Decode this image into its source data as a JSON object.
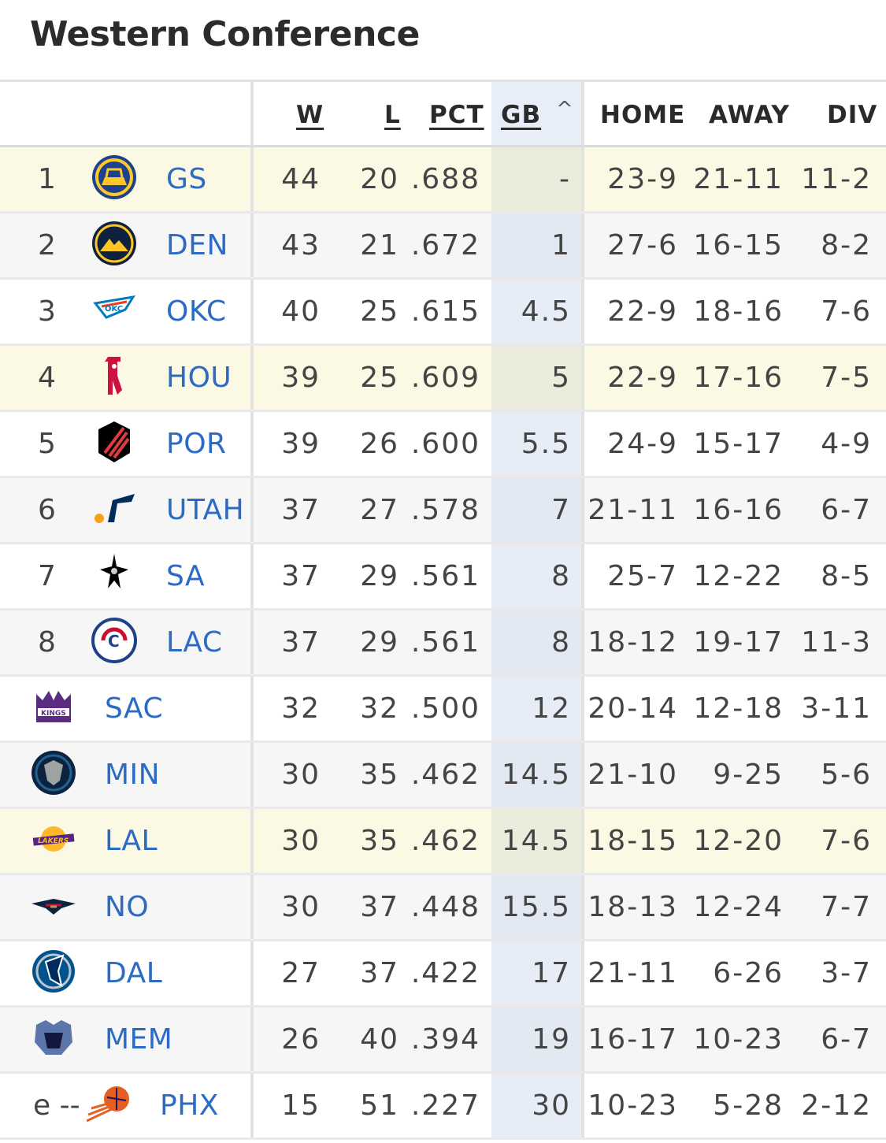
{
  "page": {
    "title": "Western Conference"
  },
  "headers": {
    "w": "W",
    "l": "L",
    "pct": "PCT",
    "gb": "GB",
    "sort_indicator": "^",
    "home": "HOME",
    "away": "AWAY",
    "div": "DIV"
  },
  "rows": [
    {
      "rank": "1",
      "team": "GS",
      "logo": "warriors-logo",
      "w": "44",
      "l": "20",
      "pct": ".688",
      "gb": "-",
      "home": "23-9",
      "away": "21-11",
      "div": "11-2",
      "highlight": true
    },
    {
      "rank": "2",
      "team": "DEN",
      "logo": "nuggets-logo",
      "w": "43",
      "l": "21",
      "pct": ".672",
      "gb": "1",
      "home": "27-6",
      "away": "16-15",
      "div": "8-2"
    },
    {
      "rank": "3",
      "team": "OKC",
      "logo": "thunder-logo",
      "w": "40",
      "l": "25",
      "pct": ".615",
      "gb": "4.5",
      "home": "22-9",
      "away": "18-16",
      "div": "7-6"
    },
    {
      "rank": "4",
      "team": "HOU",
      "logo": "rockets-logo",
      "w": "39",
      "l": "25",
      "pct": ".609",
      "gb": "5",
      "home": "22-9",
      "away": "17-16",
      "div": "7-5",
      "highlight": true
    },
    {
      "rank": "5",
      "team": "POR",
      "logo": "blazers-logo",
      "w": "39",
      "l": "26",
      "pct": ".600",
      "gb": "5.5",
      "home": "24-9",
      "away": "15-17",
      "div": "4-9"
    },
    {
      "rank": "6",
      "team": "UTAH",
      "logo": "jazz-logo",
      "w": "37",
      "l": "27",
      "pct": ".578",
      "gb": "7",
      "home": "21-11",
      "away": "16-16",
      "div": "6-7"
    },
    {
      "rank": "7",
      "team": "SA",
      "logo": "spurs-logo",
      "w": "37",
      "l": "29",
      "pct": ".561",
      "gb": "8",
      "home": "25-7",
      "away": "12-22",
      "div": "8-5"
    },
    {
      "rank": "8",
      "team": "LAC",
      "logo": "clippers-logo",
      "w": "37",
      "l": "29",
      "pct": ".561",
      "gb": "8",
      "home": "18-12",
      "away": "19-17",
      "div": "11-3"
    },
    {
      "rank": "",
      "team": "SAC",
      "logo": "kings-logo",
      "w": "32",
      "l": "32",
      "pct": ".500",
      "gb": "12",
      "home": "20-14",
      "away": "12-18",
      "div": "3-11"
    },
    {
      "rank": "",
      "team": "MIN",
      "logo": "timberwolves-logo",
      "w": "30",
      "l": "35",
      "pct": ".462",
      "gb": "14.5",
      "home": "21-10",
      "away": "9-25",
      "div": "5-6"
    },
    {
      "rank": "",
      "team": "LAL",
      "logo": "lakers-logo",
      "w": "30",
      "l": "35",
      "pct": ".462",
      "gb": "14.5",
      "home": "18-15",
      "away": "12-20",
      "div": "7-6",
      "highlight": true
    },
    {
      "rank": "",
      "team": "NO",
      "logo": "pelicans-logo",
      "w": "30",
      "l": "37",
      "pct": ".448",
      "gb": "15.5",
      "home": "18-13",
      "away": "12-24",
      "div": "7-7"
    },
    {
      "rank": "",
      "team": "DAL",
      "logo": "mavericks-logo",
      "w": "27",
      "l": "37",
      "pct": ".422",
      "gb": "17",
      "home": "21-11",
      "away": "6-26",
      "div": "3-7"
    },
    {
      "rank": "",
      "team": "MEM",
      "logo": "grizzlies-logo",
      "w": "26",
      "l": "40",
      "pct": ".394",
      "gb": "19",
      "home": "16-17",
      "away": "10-23",
      "div": "6-7"
    },
    {
      "rank": "e --",
      "team": "PHX",
      "logo": "suns-logo",
      "w": "15",
      "l": "51",
      "pct": ".227",
      "gb": "30",
      "home": "10-23",
      "away": "5-28",
      "div": "2-12"
    }
  ],
  "colors": {
    "link": "#2c6bc4",
    "highlight_row": "#fbf8e3",
    "gb_column": "#e6edf7"
  }
}
